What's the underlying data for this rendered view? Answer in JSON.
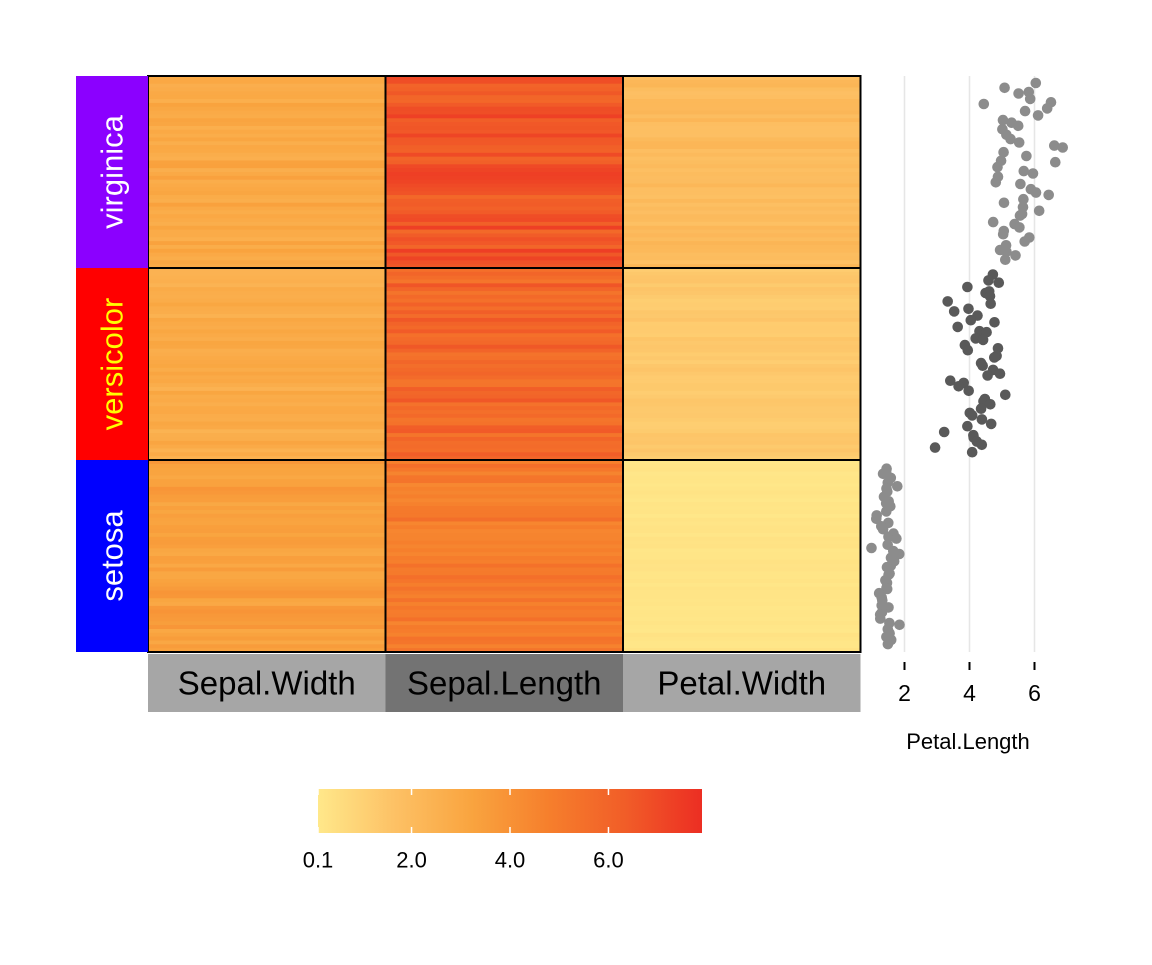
{
  "chart_data": [
    {
      "type": "heatmap",
      "rows": [
        "virginica",
        "versicolor",
        "setosa"
      ],
      "row_colors": [
        "#8B00FF",
        "#FF0000",
        "#0000FF"
      ],
      "row_text_colors": [
        "#ffffff",
        "#FFFF00",
        "#ffffff"
      ],
      "columns": [
        "Sepal.Width",
        "Sepal.Length",
        "Petal.Width"
      ],
      "column_label_bg": [
        "#A6A6A6",
        "#737373",
        "#A6A6A6"
      ],
      "palette": [
        "#FFE88A",
        "#FDC165",
        "#F9A43F",
        "#F67F2C",
        "#F15D28",
        "#EC2E23"
      ],
      "value_range": [
        0.1,
        7.9
      ],
      "cell_means": {
        "virginica": {
          "Sepal.Width": 2.97,
          "Sepal.Length": 6.59,
          "Petal.Width": 2.03
        },
        "versicolor": {
          "Sepal.Width": 2.77,
          "Sepal.Length": 5.94,
          "Petal.Width": 1.33
        },
        "setosa": {
          "Sepal.Width": 3.43,
          "Sepal.Length": 5.01,
          "Petal.Width": 0.25
        }
      },
      "colorbar": {
        "ticks": [
          "0.1",
          "2.0",
          "4.0",
          "6.0"
        ],
        "tick_values": [
          0.1,
          2.0,
          4.0,
          6.0
        ]
      }
    },
    {
      "type": "scatter",
      "xlabel": "Petal.Length",
      "xticks": [
        "2",
        "4",
        "6"
      ],
      "xtick_values": [
        2,
        4,
        6
      ],
      "xlim": [
        1.0,
        7.0
      ],
      "point_colors": [
        "#8C8C8C",
        "#595959",
        "#8C8C8C"
      ],
      "series": [
        {
          "group": "virginica",
          "values": [
            6.0,
            5.1,
            5.9,
            5.6,
            5.8,
            6.6,
            4.5,
            6.3,
            5.8,
            6.1,
            5.1,
            5.3,
            5.5,
            5.0,
            5.1,
            5.3,
            5.5,
            6.7,
            6.9,
            5.0,
            5.7,
            4.9,
            6.7,
            4.9,
            5.7,
            6.0,
            4.8,
            4.9,
            5.6,
            5.8,
            6.1,
            6.4,
            5.6,
            5.1,
            5.6,
            6.1,
            5.6,
            5.5,
            4.8,
            5.4,
            5.6,
            5.1,
            5.1,
            5.9,
            5.7,
            5.2,
            5.0,
            5.2,
            5.4,
            5.1
          ]
        },
        {
          "group": "versicolor",
          "values": [
            4.7,
            4.5,
            4.9,
            4.0,
            4.6,
            4.5,
            4.7,
            3.3,
            4.6,
            3.9,
            3.5,
            4.2,
            4.0,
            4.7,
            3.6,
            4.4,
            4.5,
            4.1,
            4.5,
            3.9,
            4.8,
            4.0,
            4.9,
            4.7,
            4.3,
            4.4,
            4.8,
            5.0,
            4.5,
            3.5,
            3.8,
            3.7,
            3.9,
            5.1,
            4.5,
            4.5,
            4.7,
            4.4,
            4.1,
            4.0,
            4.4,
            4.6,
            4.0,
            3.3,
            4.2,
            4.2,
            4.2,
            4.3,
            3.0,
            4.1
          ]
        },
        {
          "group": "setosa",
          "values": [
            1.4,
            1.4,
            1.3,
            1.5,
            1.4,
            1.7,
            1.4,
            1.5,
            1.4,
            1.5,
            1.5,
            1.6,
            1.4,
            1.1,
            1.2,
            1.5,
            1.3,
            1.4,
            1.7,
            1.5,
            1.7,
            1.5,
            1.0,
            1.7,
            1.9,
            1.6,
            1.6,
            1.5,
            1.4,
            1.6,
            1.6,
            1.5,
            1.5,
            1.4,
            1.5,
            1.2,
            1.3,
            1.4,
            1.3,
            1.5,
            1.3,
            1.3,
            1.3,
            1.6,
            1.9,
            1.4,
            1.6,
            1.4,
            1.5,
            1.4
          ]
        }
      ]
    }
  ]
}
